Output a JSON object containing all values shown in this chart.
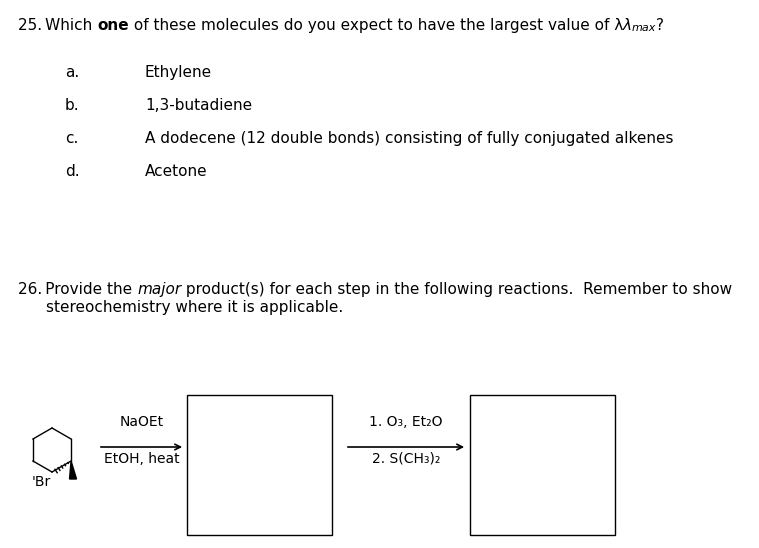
{
  "bg_color": "#ffffff",
  "options": [
    {
      "label": "a.",
      "text": "Ethylene"
    },
    {
      "label": "b.",
      "text": "1,3-butadiene"
    },
    {
      "label": "c.",
      "text": "A dodecene (12 double bonds) consisting of fully conjugated alkenes"
    },
    {
      "label": "d.",
      "text": "Acetone"
    }
  ],
  "q26_line2": "stereochemistry where it is applicable.",
  "rxn1_reagent_top": "NaOEt",
  "rxn1_reagent_bot": "EtOH, heat",
  "rxn2_reagent_top": "1. O₃, Et₂O",
  "rxn2_reagent_bot": "2. S(CH₃)₂",
  "font_size_main": 11,
  "text_color": "#000000"
}
